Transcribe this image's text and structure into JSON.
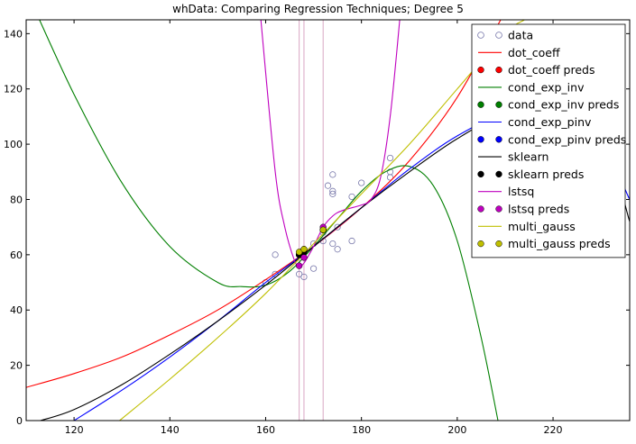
{
  "chart_data": {
    "type": "scatter",
    "title": "whData: Comparing Regression Techniques; Degree 5",
    "xlabel": "",
    "ylabel": "",
    "xlim": [
      110,
      236
    ],
    "ylim": [
      0,
      145
    ],
    "xticks": [
      120,
      140,
      160,
      180,
      200,
      220
    ],
    "yticks": [
      0,
      20,
      40,
      60,
      80,
      100,
      120,
      140
    ],
    "xtick_labels": [
      "120",
      "140",
      "160",
      "180",
      "200",
      "220"
    ],
    "ytick_labels": [
      "0",
      "20",
      "40",
      "60",
      "80",
      "100",
      "120",
      "140"
    ],
    "grid": false,
    "legend_position": "top-right",
    "vlines": [
      167,
      168,
      172
    ],
    "vline_color": "#d9a6c4",
    "data_points": {
      "name": "data",
      "x": [
        160,
        162,
        162,
        167,
        168,
        170,
        170,
        172,
        172,
        173,
        174,
        174,
        174,
        174,
        175,
        175,
        178,
        178,
        180,
        186,
        186,
        186
      ],
      "y": [
        50,
        53,
        60,
        53,
        52,
        55,
        64,
        68,
        65,
        85,
        83,
        82,
        89,
        64,
        62,
        70,
        65,
        81,
        86,
        88,
        90,
        95
      ]
    },
    "series": [
      {
        "name": "dot_coeff",
        "color": "#ff0000",
        "x": [
          110,
          120,
          130,
          140,
          150,
          160,
          170,
          180,
          190,
          200,
          210
        ],
        "y": [
          12,
          17,
          23,
          31,
          40,
          51,
          63,
          77,
          94,
          117,
          148
        ],
        "pred_label": "dot_coeff preds",
        "preds": [
          [
            167,
            60
          ],
          [
            168,
            62
          ],
          [
            172,
            69
          ]
        ]
      },
      {
        "name": "cond_exp_inv",
        "color": "#007f00",
        "x": [
          112,
          120,
          130,
          140,
          150,
          155,
          160,
          165,
          170,
          175,
          180,
          185,
          190,
          195,
          200,
          205,
          208.5
        ],
        "y": [
          148,
          118,
          86,
          63,
          50,
          48.5,
          49,
          54,
          63,
          73,
          83,
          90,
          92,
          85,
          65,
          30,
          0
        ],
        "pred_label": "cond_exp_inv preds",
        "preds": [
          [
            167,
            60
          ],
          [
            168,
            61
          ],
          [
            172,
            69
          ]
        ]
      },
      {
        "name": "cond_exp_pinv",
        "color": "#0000ff",
        "x": [
          120,
          130,
          140,
          150,
          160,
          170,
          180,
          190,
          200,
          210,
          220,
          230,
          236
        ],
        "y": [
          0,
          11,
          23,
          36,
          50,
          63,
          77,
          91,
          103,
          111,
          112,
          100,
          80
        ],
        "pred_label": "cond_exp_pinv preds",
        "preds": [
          [
            167,
            60
          ],
          [
            168,
            61
          ],
          [
            172,
            69
          ]
        ]
      },
      {
        "name": "sklearn",
        "color": "#000000",
        "x": [
          113,
          120,
          130,
          140,
          150,
          160,
          170,
          180,
          190,
          200,
          210,
          220,
          230,
          236
        ],
        "y": [
          0,
          4,
          13,
          24,
          36,
          49,
          63,
          77,
          90,
          102,
          111,
          113,
          104,
          72
        ],
        "pred_label": "sklearn preds",
        "preds": [
          [
            167,
            60
          ],
          [
            168,
            61
          ],
          [
            172,
            69
          ]
        ]
      },
      {
        "name": "lstsq",
        "color": "#bf00bf",
        "x": [
          159,
          162,
          164,
          166,
          167,
          168,
          170,
          172,
          174,
          176,
          180,
          182,
          184,
          186,
          188
        ],
        "y": [
          145,
          90,
          70,
          58,
          56,
          57,
          63,
          70,
          74,
          76,
          78,
          80,
          88,
          110,
          145
        ],
        "pred_label": "lstsq preds",
        "preds": [
          [
            167,
            56
          ],
          [
            168,
            59
          ],
          [
            172,
            70
          ]
        ]
      },
      {
        "name": "multi_gauss",
        "color": "#bfbf00",
        "x": [
          129.5,
          140,
          150,
          160,
          170,
          180,
          190,
          200,
          210,
          214
        ],
        "y": [
          0,
          15,
          30,
          46,
          64,
          82,
          100,
          120,
          140,
          145
        ],
        "pred_label": "multi_gauss preds",
        "preds": [
          [
            167,
            61
          ],
          [
            168,
            62
          ],
          [
            172,
            69
          ]
        ]
      }
    ],
    "legend": [
      {
        "label": "data",
        "kind": "open-marker",
        "color": "#7777aa"
      },
      {
        "label": "dot_coeff",
        "kind": "line",
        "color": "#ff0000"
      },
      {
        "label": "dot_coeff preds",
        "kind": "marker",
        "color": "#ff0000"
      },
      {
        "label": "cond_exp_inv",
        "kind": "line",
        "color": "#007f00"
      },
      {
        "label": "cond_exp_inv preds",
        "kind": "marker",
        "color": "#007f00"
      },
      {
        "label": "cond_exp_pinv",
        "kind": "line",
        "color": "#0000ff"
      },
      {
        "label": "cond_exp_pinv preds",
        "kind": "marker",
        "color": "#0000ff"
      },
      {
        "label": "sklearn",
        "kind": "line",
        "color": "#000000"
      },
      {
        "label": "sklearn preds",
        "kind": "marker",
        "color": "#000000"
      },
      {
        "label": "lstsq",
        "kind": "line",
        "color": "#bf00bf"
      },
      {
        "label": "lstsq preds",
        "kind": "marker",
        "color": "#bf00bf"
      },
      {
        "label": "multi_gauss",
        "kind": "line",
        "color": "#bfbf00"
      },
      {
        "label": "multi_gauss preds",
        "kind": "marker",
        "color": "#bfbf00"
      }
    ]
  }
}
